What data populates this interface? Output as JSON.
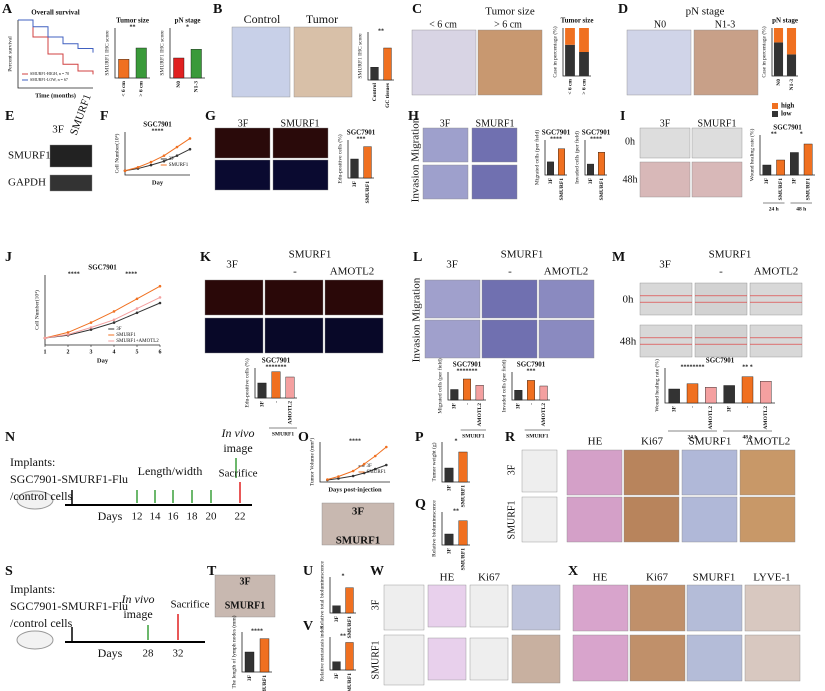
{
  "panels": {
    "A": {
      "letter": "A",
      "texts": [],
      "charts": [
        {
          "type": "km",
          "title": "Overall survival",
          "xlabel": "Time (months)",
          "ylabel": "Percent survival",
          "xlim": [
            0,
            100
          ],
          "ylim": [
            0,
            100
          ],
          "series": [
            {
              "name": "SMURF1-HIGH, n = 70",
              "color": "#d04040",
              "x": [
                0,
                20,
                40,
                60,
                80,
                100
              ],
              "values": [
                100,
                75,
                50,
                35,
                25,
                20
              ]
            },
            {
              "name": "SMURF1-LOW, n = 67",
              "color": "#4060c0",
              "x": [
                0,
                20,
                40,
                60,
                80,
                100
              ],
              "values": [
                100,
                90,
                75,
                65,
                58,
                52
              ]
            }
          ]
        },
        {
          "type": "bar",
          "title": "Tumor size",
          "ylabel": "SMURF1 IHC score",
          "categories": [
            "< 6 cm",
            "> 6 cm"
          ],
          "values": [
            3,
            4.8
          ],
          "colors": [
            "#f07020",
            "#3a9a3a"
          ],
          "ylim": [
            0,
            8
          ],
          "sig": [
            "**"
          ]
        },
        {
          "type": "bar",
          "title": "pN stage",
          "ylabel": "SMURF1 IHC score",
          "categories": [
            "N0",
            "N1-3"
          ],
          "values": [
            3.2,
            4.6
          ],
          "colors": [
            "#e02020",
            "#3a9a3a"
          ],
          "ylim": [
            0,
            8
          ],
          "sig": [
            "*"
          ]
        }
      ]
    },
    "B": {
      "letter": "B",
      "texts": [
        "Control",
        "Tumor"
      ],
      "charts": [
        {
          "type": "bar",
          "ylabel": "SMURF1 IHC score",
          "categories": [
            "Control",
            "GC tissues"
          ],
          "values": [
            0.8,
            2
          ],
          "colors": [
            "#333333",
            "#f07020"
          ],
          "ylim": [
            0,
            3
          ],
          "sig": [
            "**"
          ]
        }
      ]
    },
    "C": {
      "letter": "C",
      "texts": [
        "Tumor size",
        "< 6 cm",
        "> 6 cm"
      ],
      "charts": [
        {
          "type": "stacked",
          "title": "Tumor size",
          "ylabel": "Case in percentage (%)",
          "categories": [
            "< 6 cm",
            "> 6 cm"
          ],
          "ylim": [
            0,
            100
          ],
          "series": [
            {
              "color": "#333333",
              "values": [
                65,
                50
              ]
            },
            {
              "color": "#f07020",
              "values": [
                35,
                50
              ]
            }
          ]
        }
      ]
    },
    "D": {
      "letter": "D",
      "texts": [
        "pN stage",
        "N0",
        "N1-3"
      ],
      "charts": [
        {
          "type": "stacked",
          "title": "pN stage",
          "ylabel": "Case in percentage (%)",
          "categories": [
            "N0",
            "N1-3"
          ],
          "ylim": [
            0,
            100
          ],
          "series": [
            {
              "name": "low",
              "color": "#333333",
              "values": [
                70,
                45
              ]
            },
            {
              "name": "high",
              "color": "#f07020",
              "values": [
                30,
                55
              ]
            }
          ]
        }
      ]
    },
    "E": {
      "letter": "E",
      "texts": [
        "3F",
        "SMURF1",
        "SMURF1",
        "GAPDH"
      ],
      "charts": []
    },
    "F": {
      "letter": "F",
      "texts": [],
      "charts": [
        {
          "type": "line",
          "title": "SGC7901",
          "xlabel": "Day",
          "ylabel": "Cell Number(10⁴)",
          "xlim": [
            1,
            6
          ],
          "ylim": [
            0,
            10
          ],
          "sig": [
            "****"
          ],
          "series": [
            {
              "name": "3F",
              "color": "#333333",
              "x": [
                1,
                2,
                3,
                4,
                5,
                6
              ],
              "values": [
                1,
                1.5,
                2.3,
                3.2,
                4.5,
                6
              ]
            },
            {
              "name": "SMURF1",
              "color": "#f07020",
              "x": [
                1,
                2,
                3,
                4,
                5,
                6
              ],
              "values": [
                1,
                1.8,
                3,
                4.5,
                6.5,
                8.5
              ]
            }
          ]
        }
      ]
    },
    "G": {
      "letter": "G",
      "texts": [
        "3F",
        "SMURF1"
      ],
      "charts": [
        {
          "type": "bar",
          "title": "SGC7901",
          "ylabel": "Edu-positive cells (%)",
          "categories": [
            "3F",
            "SMURF1"
          ],
          "values": [
            20,
            33
          ],
          "colors": [
            "#333333",
            "#f07020"
          ],
          "ylim": [
            0,
            40
          ],
          "sig": [
            "***"
          ]
        }
      ]
    },
    "H": {
      "letter": "H",
      "texts": [
        "Invasion Migration",
        "3F",
        "SMURF1"
      ],
      "charts": [
        {
          "type": "bar",
          "title": "SGC7901",
          "ylabel": "Migrated cells (per field)",
          "categories": [
            "3F",
            "SMURF1"
          ],
          "values": [
            300,
            600
          ],
          "colors": [
            "#333333",
            "#f07020"
          ],
          "ylim": [
            0,
            800
          ],
          "sig": [
            "****"
          ]
        },
        {
          "type": "bar",
          "title": "SGC7901",
          "ylabel": "Invaded cells (per field)",
          "categories": [
            "3F",
            "SMURF1"
          ],
          "values": [
            250,
            520
          ],
          "colors": [
            "#333333",
            "#f07020"
          ],
          "ylim": [
            0,
            800
          ],
          "sig": [
            "****"
          ]
        }
      ]
    },
    "I": {
      "letter": "I",
      "texts": [
        "0h",
        "48h",
        "3F",
        "SMURF1"
      ],
      "charts": [
        {
          "type": "bar",
          "title": "SGC7901",
          "ylabel": "Wound healing rate (%)",
          "categories": [
            "3F",
            "SMURF1",
            "3F",
            "SMURF1"
          ],
          "groups": [
            "24 h",
            "48 h"
          ],
          "values": [
            20,
            30,
            45,
            62
          ],
          "colors": [
            "#333333",
            "#f07020",
            "#333333",
            "#f07020"
          ],
          "ylim": [
            0,
            80
          ],
          "sig": [
            "**",
            "*"
          ]
        }
      ]
    },
    "J": {
      "letter": "J",
      "texts": [],
      "charts": [
        {
          "type": "line",
          "title": "SGC7901",
          "xlabel": "Day",
          "ylabel": "Cell Number(10⁴)",
          "xlim": [
            1,
            6
          ],
          "ylim": [
            0,
            10
          ],
          "xticks": [
            1,
            2,
            3,
            4,
            5,
            6
          ],
          "sig": [
            "****",
            "****"
          ],
          "series": [
            {
              "name": "3F",
              "color": "#333333",
              "x": [
                1,
                2,
                3,
                4,
                5,
                6
              ],
              "values": [
                1,
                1.4,
                2.2,
                3.2,
                4.6,
                6
              ]
            },
            {
              "name": "SMURF1",
              "color": "#f07020",
              "x": [
                1,
                2,
                3,
                4,
                5,
                6
              ],
              "values": [
                1,
                1.8,
                3.2,
                4.8,
                6.6,
                8.4
              ]
            },
            {
              "name": "SMURF1+AMOTL2",
              "color": "#f4a0a0",
              "x": [
                1,
                2,
                3,
                4,
                5,
                6
              ],
              "values": [
                1,
                1.5,
                2.5,
                3.6,
                5.2,
                6.8
              ]
            }
          ]
        }
      ]
    },
    "K": {
      "letter": "K",
      "texts": [
        "3F",
        "SMURF1",
        "-",
        "AMOTL2"
      ],
      "charts": [
        {
          "type": "bar",
          "title": "SGC7901",
          "ylabel": "Edu-positive cells (%)",
          "xlabel": "SMURF1",
          "categories": [
            "3F",
            "-",
            "AMOTL2"
          ],
          "values": [
            20,
            35,
            28
          ],
          "colors": [
            "#333333",
            "#f07020",
            "#f4a0a0"
          ],
          "ylim": [
            0,
            40
          ],
          "sig": [
            "*******"
          ]
        }
      ]
    },
    "L": {
      "letter": "L",
      "texts": [
        "Invasion Migration",
        "3F",
        "SMURF1",
        "-",
        "AMOTL2"
      ],
      "charts": [
        {
          "type": "bar",
          "title": "SGC7901",
          "ylabel": "Migrated cells (per field)",
          "xlabel": "SMURF1",
          "categories": [
            "3F",
            "-",
            "AMOTL2"
          ],
          "values": [
            300,
            600,
            420
          ],
          "colors": [
            "#333333",
            "#f07020",
            "#f4a0a0"
          ],
          "ylim": [
            0,
            800
          ],
          "sig": [
            "*******"
          ]
        },
        {
          "type": "bar",
          "title": "SGC7901",
          "ylabel": "Invaded cells (per field)",
          "xlabel": "SMURF1",
          "categories": [
            "3F",
            "-",
            "AMOTL2"
          ],
          "values": [
            280,
            560,
            400
          ],
          "colors": [
            "#333333",
            "#f07020",
            "#f4a0a0"
          ],
          "ylim": [
            0,
            800
          ],
          "sig": [
            "***"
          ]
        }
      ]
    },
    "M": {
      "letter": "M",
      "texts": [
        "0h",
        "48h",
        "3F",
        "SMURF1",
        "-",
        "AMOTL2"
      ],
      "charts": [
        {
          "type": "bar",
          "title": "SGC7901",
          "ylabel": "Wound healing rate (%)",
          "categories": [
            "3F",
            "-",
            "AMOTL2",
            "3F",
            "-",
            "AMOTL2"
          ],
          "groups": [
            "24 h",
            "48 h"
          ],
          "values": [
            40,
            55,
            45,
            50,
            75,
            62
          ],
          "colors": [
            "#333333",
            "#f07020",
            "#f4a0a0",
            "#333333",
            "#f07020",
            "#f4a0a0"
          ],
          "ylim": [
            0,
            100
          ],
          "sig": [
            "********",
            "** *"
          ]
        }
      ]
    },
    "N": {
      "letter": "N",
      "texts": [
        "Implants:",
        "SGC7901-SMURF1-Flu",
        "/control cells",
        "Days",
        "12",
        "14",
        "16",
        "18",
        "20",
        "22",
        "Length/width",
        "In vivo",
        "image",
        "Sacrifice"
      ],
      "charts": []
    },
    "O": {
      "letter": "O",
      "texts": [
        "3F",
        "SMURF1"
      ],
      "charts": [
        {
          "type": "line",
          "xlabel": "Days post-injection",
          "ylabel": "Tumor Volume (mm³)",
          "xlim": [
            5,
            24
          ],
          "ylim": [
            0,
            800
          ],
          "sig": [
            "****"
          ],
          "series": [
            {
              "name": "3F",
              "color": "#333333",
              "x": [
                7,
                10,
                14,
                17,
                20,
                23
              ],
              "values": [
                40,
                70,
                120,
                180,
                260,
                340
              ]
            },
            {
              "name": "SMURF1",
              "color": "#f07020",
              "x": [
                7,
                10,
                14,
                17,
                20,
                23
              ],
              "values": [
                50,
                110,
                220,
                360,
                520,
                700
              ]
            }
          ]
        }
      ]
    },
    "P": {
      "letter": "P",
      "texts": [],
      "charts": [
        {
          "type": "bar",
          "ylabel": "Tumor weight (g)",
          "categories": [
            "3F",
            "SMURF1"
          ],
          "values": [
            0.35,
            0.75
          ],
          "colors": [
            "#333333",
            "#f07020"
          ],
          "ylim": [
            0,
            1
          ],
          "sig": [
            "*"
          ]
        }
      ]
    },
    "Q": {
      "letter": "Q",
      "texts": [],
      "charts": [
        {
          "type": "bar",
          "ylabel": "Relative bioluminescence",
          "categories": [
            "3F",
            "SMURF1"
          ],
          "values": [
            1,
            2.2
          ],
          "colors": [
            "#333333",
            "#f07020"
          ],
          "ylim": [
            0,
            3
          ],
          "sig": [
            "**"
          ]
        }
      ]
    },
    "R": {
      "letter": "R",
      "texts": [
        "HE",
        "Ki67",
        "SMURF1",
        "AMOTL2",
        "3F",
        "SMURF1"
      ],
      "charts": []
    },
    "S": {
      "letter": "S",
      "texts": [
        "Implants:",
        "SGC7901-SMURF1-Flu",
        "/control cells",
        "Days",
        "28",
        "32",
        "In vivo",
        "image",
        "Sacrifice"
      ],
      "charts": []
    },
    "T": {
      "letter": "T",
      "texts": [
        "3F",
        "SMURF1"
      ],
      "charts": [
        {
          "type": "bar",
          "ylabel": "The length of lymph nodes (mm)",
          "categories": [
            "3F",
            "SMURF1"
          ],
          "values": [
            3,
            5
          ],
          "colors": [
            "#333333",
            "#f07020"
          ],
          "ylim": [
            0,
            6
          ],
          "sig": [
            "****"
          ]
        }
      ]
    },
    "U": {
      "letter": "U",
      "texts": [],
      "charts": [
        {
          "type": "bar",
          "ylabel": "Relative total bioluminescence",
          "categories": [
            "3F",
            "SMURF1"
          ],
          "values": [
            1,
            3.5
          ],
          "colors": [
            "#333333",
            "#f07020"
          ],
          "ylim": [
            0,
            5
          ],
          "sig": [
            "*"
          ]
        }
      ]
    },
    "V": {
      "letter": "V",
      "texts": [],
      "charts": [
        {
          "type": "bar",
          "ylabel": "Relative metastasis index",
          "categories": [
            "3F",
            "SMURF1"
          ],
          "values": [
            0.3,
            1
          ],
          "colors": [
            "#333333",
            "#f07020"
          ],
          "ylim": [
            0,
            1.2
          ],
          "sig": [
            "**"
          ]
        }
      ]
    },
    "W": {
      "letter": "W",
      "texts": [
        "HE",
        "Ki67",
        "3F",
        "SMURF1"
      ],
      "charts": []
    },
    "X": {
      "letter": "X",
      "texts": [
        "HE",
        "Ki67",
        "SMURF1",
        "LYVE-1"
      ],
      "charts": []
    }
  }
}
